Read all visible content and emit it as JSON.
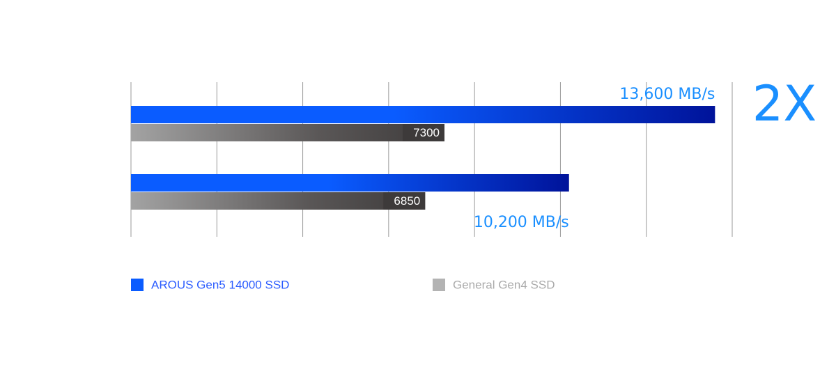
{
  "chart_data": {
    "type": "bar",
    "orientation": "horizontal",
    "categories": [
      null,
      null
    ],
    "series": [
      {
        "name": "AROUS Gen5 14000 SSD",
        "color": "#0a5cff",
        "values": [
          13600,
          10200
        ],
        "value_labels": [
          "13,600 MB/s",
          "10,200 MB/s"
        ]
      },
      {
        "name": "General Gen4 SSD",
        "color": "#a3a3a3",
        "values": [
          7300,
          6850
        ]
      }
    ],
    "xlim": [
      0,
      14000
    ],
    "xticks": [
      0,
      2000,
      4000,
      6000,
      8000,
      10000,
      12000,
      14000
    ],
    "grid": true,
    "annotation": "2X"
  }
}
